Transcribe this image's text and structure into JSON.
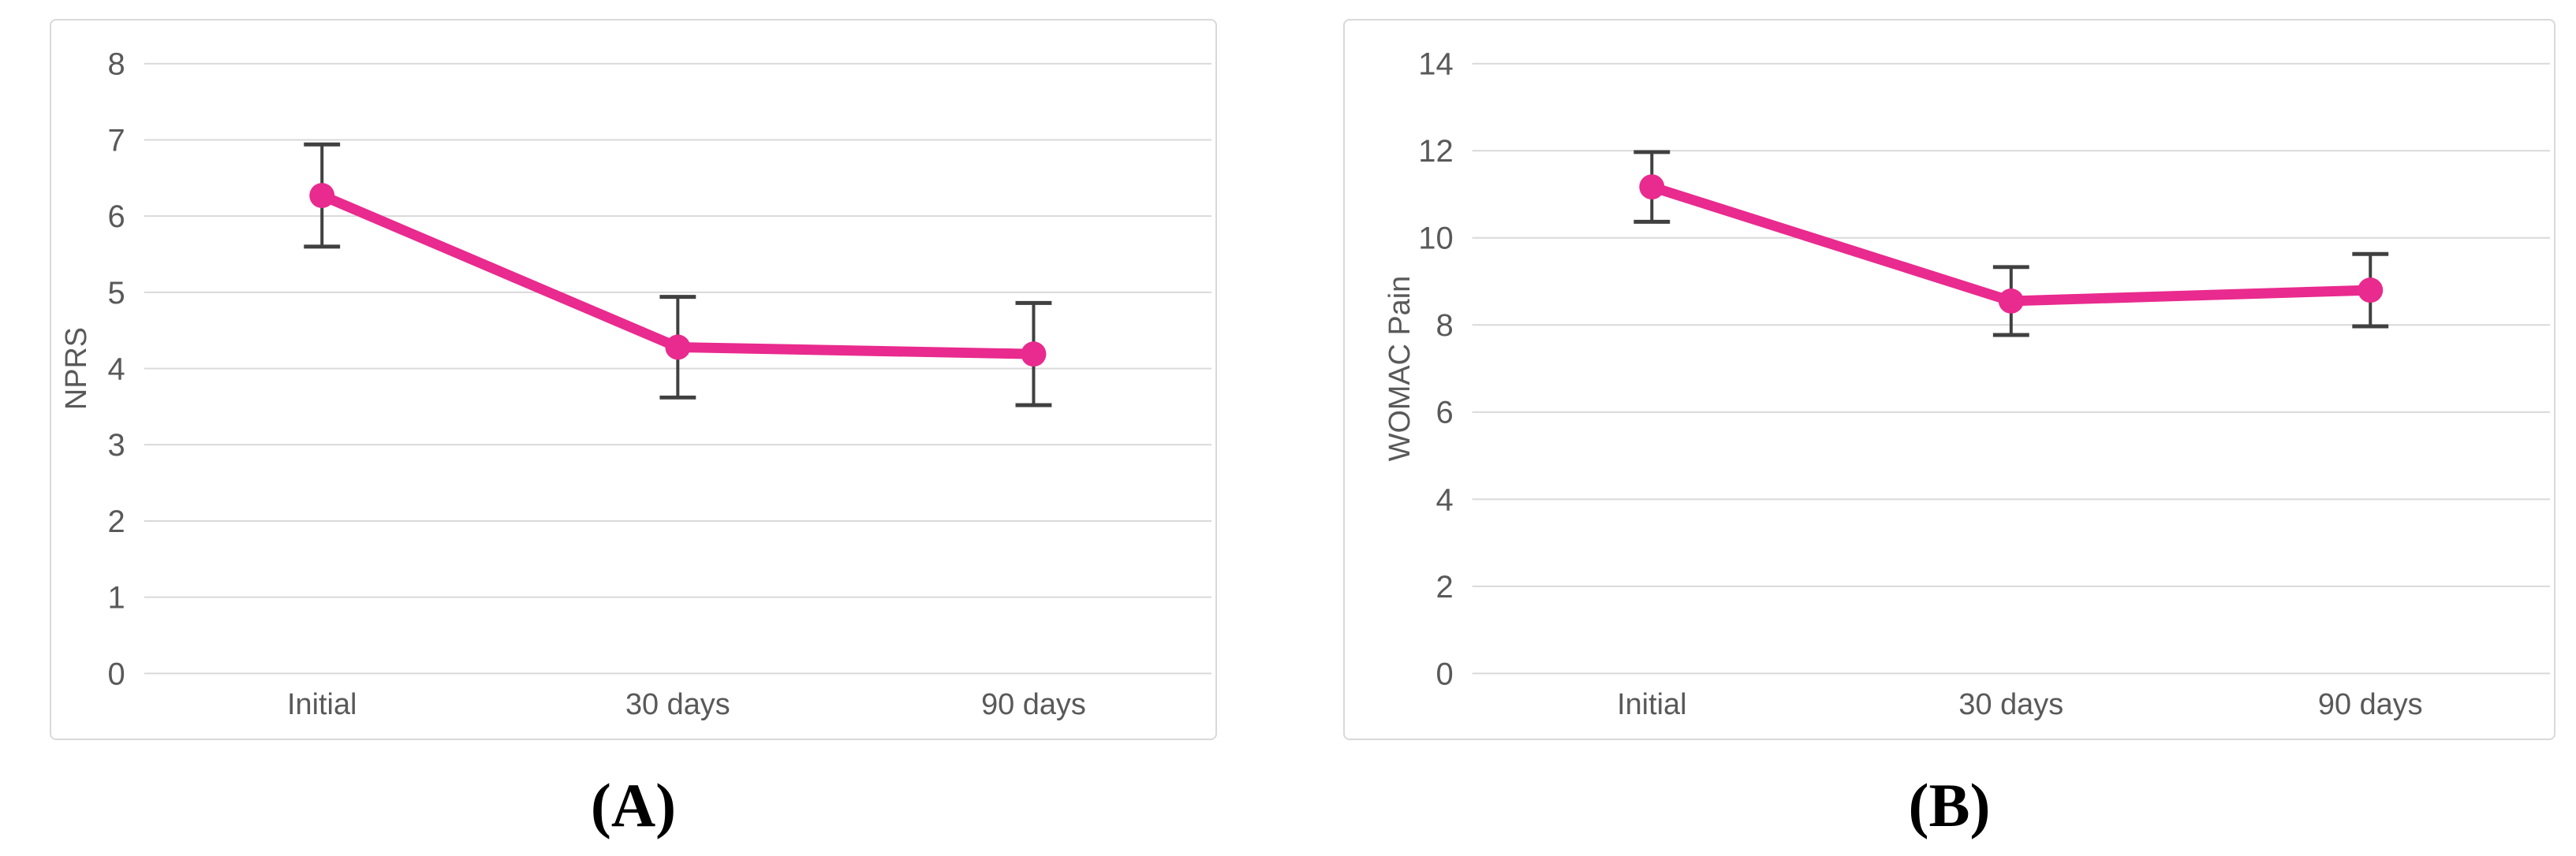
{
  "figure": {
    "captions": {
      "a": "(A)",
      "b": "(B)"
    }
  },
  "colors": {
    "series_line": "#e92a8e",
    "error_bar": "#404040",
    "gridline": "#d9d9d9",
    "panel_border": "#d9d9d9",
    "axis_text": "#595959",
    "caption_text": "#000000",
    "background": "#ffffff"
  },
  "chart_data": [
    {
      "id": "a",
      "type": "line",
      "title": "",
      "ylabel": "NPRS",
      "xlabel": "",
      "categories": [
        "Initial",
        "30 days",
        "90 days"
      ],
      "series": [
        {
          "name": "NPRS",
          "values": [
            6.27,
            4.28,
            4.19
          ],
          "error_bars": [
            0.67,
            0.66,
            0.67
          ]
        }
      ],
      "ylim": [
        0,
        8
      ],
      "ytick_step": 1,
      "ytick_labels": [
        "0",
        "1",
        "2",
        "3",
        "4",
        "5",
        "6",
        "7",
        "8"
      ],
      "grid": "horizontal",
      "legend": "none",
      "markers": "circle"
    },
    {
      "id": "b",
      "type": "line",
      "title": "",
      "ylabel": "WOMAC Pain",
      "xlabel": "",
      "categories": [
        "Initial",
        "30 days",
        "90 days"
      ],
      "series": [
        {
          "name": "WOMAC Pain",
          "values": [
            11.17,
            8.55,
            8.8
          ],
          "error_bars": [
            0.8,
            0.78,
            0.83
          ]
        }
      ],
      "ylim": [
        0,
        14
      ],
      "ytick_step": 2,
      "ytick_labels": [
        "0",
        "2",
        "4",
        "6",
        "8",
        "10",
        "12",
        "14"
      ],
      "grid": "horizontal",
      "legend": "none",
      "markers": "circle"
    }
  ]
}
